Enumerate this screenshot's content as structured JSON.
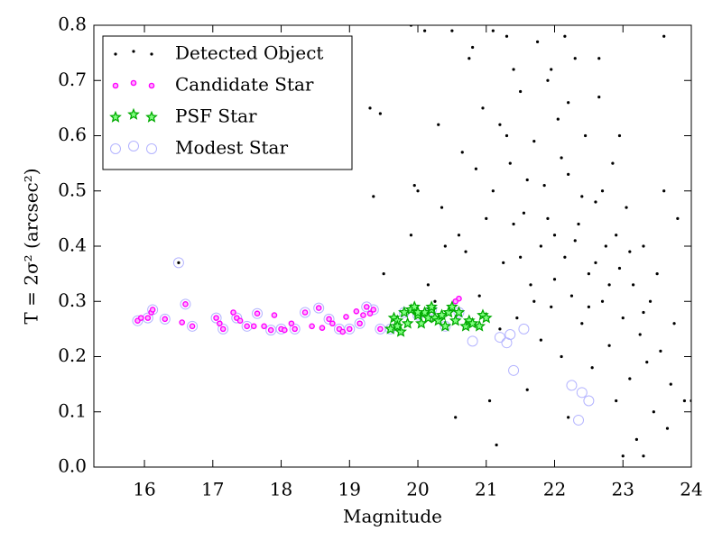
{
  "chart_data": {
    "type": "scatter",
    "xlabel": "Magnitude",
    "ylabel": "T = 2σ² (arcsec²)",
    "xlim": [
      15.26,
      24
    ],
    "ylim": [
      0,
      0.8
    ],
    "xticks": [
      16,
      17,
      18,
      19,
      20,
      21,
      22,
      23,
      24
    ],
    "yticks": [
      {
        "value": 0,
        "label": "0.0"
      },
      0.1,
      0.2,
      0.3,
      0.4,
      0.5,
      0.6,
      0.7,
      0.8
    ],
    "legend": "upper left",
    "series": [
      {
        "name": "Detected Object",
        "color": "#000000",
        "marker": "dot",
        "x": [
          19.3,
          19.45,
          19.35,
          19.9,
          19.95,
          20.0,
          20.1,
          20.15,
          20.3,
          20.35,
          20.4,
          20.5,
          20.55,
          20.6,
          20.65,
          20.7,
          20.75,
          20.8,
          20.85,
          20.9,
          20.95,
          21.0,
          21.05,
          21.1,
          21.15,
          21.2,
          21.25,
          21.3,
          21.35,
          21.4,
          21.45,
          21.5,
          21.55,
          21.6,
          21.65,
          21.7,
          21.75,
          21.8,
          21.85,
          21.9,
          21.95,
          22.0,
          22.05,
          22.1,
          22.15,
          22.2,
          22.25,
          22.3,
          22.35,
          22.4,
          22.45,
          22.5,
          22.55,
          22.6,
          22.65,
          22.7,
          22.75,
          22.8,
          22.85,
          22.9,
          22.95,
          23.0,
          23.05,
          23.1,
          23.15,
          23.2,
          23.25,
          23.3,
          23.35,
          23.4,
          23.45,
          23.5,
          23.55,
          23.6,
          23.65,
          23.7,
          23.75,
          23.8,
          23.9,
          24.0,
          21.1,
          21.3,
          21.5,
          21.7,
          21.9,
          22.1,
          22.3,
          22.5,
          22.7,
          22.9,
          23.1,
          23.3,
          22.2,
          22.4,
          22.6,
          22.8,
          22.0,
          21.8,
          21.6,
          21.4,
          21.2,
          22.95,
          22.65,
          22.15,
          21.95,
          20.25,
          19.9,
          19.5,
          23.6,
          23.0,
          23.3,
          22.2,
          16.5
        ],
        "values": [
          0.65,
          0.64,
          0.49,
          0.8,
          0.51,
          0.5,
          0.79,
          0.33,
          0.62,
          0.47,
          0.4,
          0.79,
          0.09,
          0.42,
          0.57,
          0.39,
          0.74,
          0.76,
          0.54,
          0.31,
          0.65,
          0.45,
          0.12,
          0.79,
          0.04,
          0.62,
          0.37,
          0.78,
          0.55,
          0.72,
          0.27,
          0.68,
          0.46,
          0.14,
          0.33,
          0.59,
          0.77,
          0.23,
          0.51,
          0.7,
          0.29,
          0.42,
          0.63,
          0.2,
          0.38,
          0.53,
          0.31,
          0.74,
          0.44,
          0.26,
          0.6,
          0.35,
          0.18,
          0.48,
          0.67,
          0.3,
          0.4,
          0.22,
          0.55,
          0.12,
          0.36,
          0.27,
          0.47,
          0.16,
          0.33,
          0.05,
          0.24,
          0.4,
          0.19,
          0.3,
          0.1,
          0.35,
          0.21,
          0.78,
          0.07,
          0.15,
          0.26,
          0.45,
          0.12,
          0.12,
          0.5,
          0.6,
          0.38,
          0.3,
          0.45,
          0.56,
          0.41,
          0.29,
          0.5,
          0.42,
          0.39,
          0.28,
          0.66,
          0.49,
          0.37,
          0.33,
          0.34,
          0.4,
          0.52,
          0.44,
          0.25,
          0.6,
          0.74,
          0.78,
          0.72,
          0.3,
          0.42,
          0.35,
          0.5,
          0.02,
          0.02,
          0.09,
          0.37
        ]
      },
      {
        "name": "Candidate Star",
        "color": "#ff00ff",
        "marker": "circle",
        "x": [
          15.9,
          15.95,
          16.05,
          16.1,
          16.12,
          16.3,
          16.55,
          16.6,
          16.7,
          17.05,
          17.1,
          17.15,
          17.3,
          17.35,
          17.4,
          17.5,
          17.6,
          17.65,
          17.75,
          17.85,
          17.9,
          18.0,
          18.05,
          18.15,
          18.2,
          18.35,
          18.45,
          18.55,
          18.6,
          18.7,
          18.75,
          18.85,
          18.9,
          18.95,
          19.0,
          19.1,
          19.15,
          19.2,
          19.25,
          19.3,
          19.35,
          19.45,
          20.6,
          20.55
        ],
        "values": [
          0.265,
          0.27,
          0.27,
          0.28,
          0.285,
          0.268,
          0.262,
          0.295,
          0.255,
          0.27,
          0.26,
          0.25,
          0.28,
          0.27,
          0.265,
          0.255,
          0.255,
          0.278,
          0.255,
          0.248,
          0.275,
          0.25,
          0.248,
          0.26,
          0.25,
          0.28,
          0.255,
          0.288,
          0.252,
          0.268,
          0.26,
          0.25,
          0.245,
          0.272,
          0.25,
          0.282,
          0.26,
          0.275,
          0.29,
          0.278,
          0.285,
          0.25,
          0.305,
          0.3
        ]
      },
      {
        "name": "PSF Star",
        "color": "#00aa00",
        "marker": "star",
        "x": [
          19.6,
          19.65,
          19.7,
          19.75,
          19.8,
          19.85,
          19.9,
          19.95,
          20.0,
          20.05,
          20.1,
          20.15,
          20.2,
          20.25,
          20.3,
          20.35,
          20.4,
          20.45,
          20.5,
          20.55,
          20.6,
          20.7,
          20.75,
          20.8,
          20.9,
          20.95,
          21.0,
          19.7,
          20.0,
          20.2
        ],
        "values": [
          0.25,
          0.27,
          0.265,
          0.245,
          0.28,
          0.26,
          0.285,
          0.29,
          0.275,
          0.26,
          0.28,
          0.27,
          0.285,
          0.27,
          0.265,
          0.275,
          0.255,
          0.28,
          0.29,
          0.265,
          0.28,
          0.255,
          0.265,
          0.26,
          0.255,
          0.275,
          0.27,
          0.255,
          0.28,
          0.29
        ]
      },
      {
        "name": "Modest Star",
        "color": "#b4b4ff",
        "marker": "ring",
        "x": [
          15.9,
          16.05,
          16.12,
          16.3,
          16.5,
          16.6,
          16.7,
          17.05,
          17.15,
          17.35,
          17.5,
          17.65,
          17.85,
          18.0,
          18.2,
          18.35,
          18.55,
          18.7,
          18.85,
          19.0,
          19.15,
          19.25,
          19.35,
          19.45,
          19.6,
          19.8,
          20.0,
          20.2,
          20.4,
          20.6,
          20.8,
          21.2,
          21.3,
          21.35,
          21.4,
          21.55,
          22.25,
          22.35,
          22.4,
          22.5
        ],
        "values": [
          0.265,
          0.27,
          0.285,
          0.268,
          0.37,
          0.295,
          0.255,
          0.27,
          0.25,
          0.27,
          0.255,
          0.278,
          0.248,
          0.25,
          0.25,
          0.28,
          0.288,
          0.268,
          0.25,
          0.25,
          0.26,
          0.29,
          0.285,
          0.25,
          0.25,
          0.28,
          0.275,
          0.285,
          0.255,
          0.28,
          0.228,
          0.235,
          0.225,
          0.24,
          0.175,
          0.25,
          0.148,
          0.085,
          0.135,
          0.12
        ]
      }
    ]
  }
}
